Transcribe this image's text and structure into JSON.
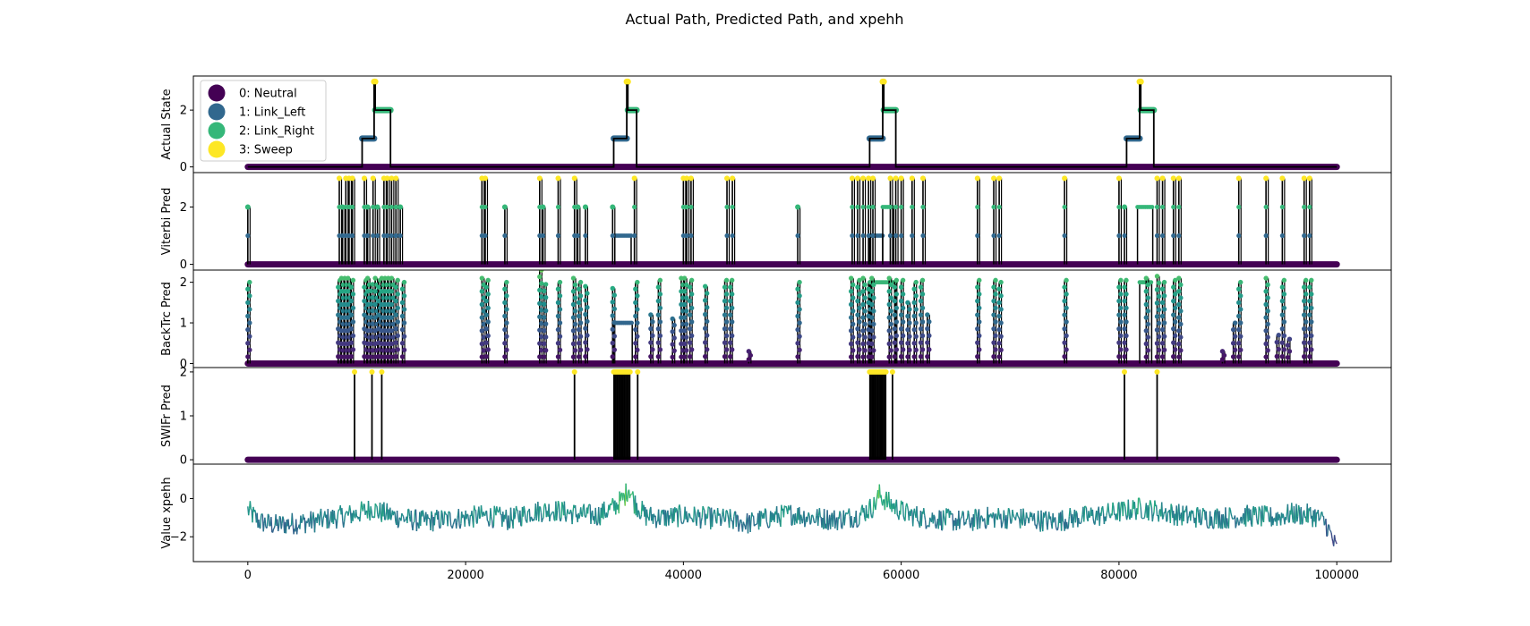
{
  "figure": {
    "title": "Actual Path, Predicted Path, and xpehh"
  },
  "colors": {
    "state_0": "#440154",
    "state_1": "#31688e",
    "state_2": "#35b779",
    "state_3": "#fde725",
    "line": "#000000",
    "frame": "#000000"
  },
  "legend": {
    "placement": "upper-left of top panel",
    "items": [
      {
        "label": "0: Neutral",
        "color": "#440154"
      },
      {
        "label": "1: Link_Left",
        "color": "#31688e"
      },
      {
        "label": "2: Link_Right",
        "color": "#35b779"
      },
      {
        "label": "3: Sweep",
        "color": "#fde725"
      }
    ]
  },
  "chart_data": [
    {
      "type": "line",
      "panel": "actual",
      "ylabel": "Actual State",
      "xlim": [
        -5000,
        105000
      ],
      "ylim": [
        -0.2,
        3.2
      ],
      "yticks": [
        0,
        2
      ],
      "ytick_labels": [
        "0",
        "2"
      ],
      "state_path": [
        [
          0,
          0
        ],
        [
          10500,
          0
        ],
        [
          10500,
          1
        ],
        [
          11600,
          1
        ],
        [
          11600,
          3
        ],
        [
          11700,
          3
        ],
        [
          11700,
          2
        ],
        [
          13100,
          2
        ],
        [
          13100,
          0
        ],
        [
          33600,
          0
        ],
        [
          33600,
          1
        ],
        [
          34800,
          1
        ],
        [
          34800,
          3
        ],
        [
          34900,
          3
        ],
        [
          34900,
          2
        ],
        [
          35700,
          2
        ],
        [
          35700,
          0
        ],
        [
          57100,
          0
        ],
        [
          57100,
          1
        ],
        [
          58300,
          1
        ],
        [
          58300,
          3
        ],
        [
          58400,
          3
        ],
        [
          58400,
          2
        ],
        [
          59500,
          2
        ],
        [
          59500,
          0
        ],
        [
          80700,
          0
        ],
        [
          80700,
          1
        ],
        [
          81900,
          1
        ],
        [
          81900,
          3
        ],
        [
          82000,
          3
        ],
        [
          82000,
          2
        ],
        [
          83200,
          2
        ],
        [
          83200,
          0
        ],
        [
          100000,
          0
        ]
      ]
    },
    {
      "type": "line",
      "panel": "viterbi",
      "ylabel": "Viterbi Pred",
      "xlim": [
        -5000,
        105000
      ],
      "ylim": [
        -0.2,
        3.2
      ],
      "yticks": [
        0,
        2
      ],
      "ytick_labels": [
        "0",
        "2"
      ],
      "spikes": [
        [
          0,
          2
        ],
        [
          8400,
          3
        ],
        [
          8700,
          2
        ],
        [
          9000,
          3
        ],
        [
          9300,
          3
        ],
        [
          9600,
          3
        ],
        [
          10700,
          3
        ],
        [
          11000,
          2
        ],
        [
          11500,
          3
        ],
        [
          11900,
          2
        ],
        [
          12500,
          3
        ],
        [
          12800,
          3
        ],
        [
          13200,
          3
        ],
        [
          13600,
          3
        ],
        [
          14000,
          2
        ],
        [
          21500,
          3
        ],
        [
          21800,
          3
        ],
        [
          23600,
          2
        ],
        [
          26800,
          3
        ],
        [
          27100,
          2
        ],
        [
          28500,
          3
        ],
        [
          30000,
          3
        ],
        [
          30300,
          2
        ],
        [
          31000,
          2
        ],
        [
          33500,
          2
        ],
        [
          35500,
          3
        ],
        [
          40000,
          3
        ],
        [
          40300,
          3
        ],
        [
          40700,
          3
        ],
        [
          44000,
          3
        ],
        [
          44500,
          3
        ],
        [
          50500,
          2
        ],
        [
          55500,
          3
        ],
        [
          56000,
          3
        ],
        [
          56500,
          3
        ],
        [
          57000,
          3
        ],
        [
          57400,
          3
        ],
        [
          59000,
          3
        ],
        [
          59500,
          3
        ],
        [
          60000,
          3
        ],
        [
          61000,
          3
        ],
        [
          62000,
          3
        ],
        [
          67000,
          3
        ],
        [
          68500,
          3
        ],
        [
          69000,
          3
        ],
        [
          75000,
          3
        ],
        [
          80000,
          3
        ],
        [
          80500,
          2
        ],
        [
          83500,
          3
        ],
        [
          84000,
          3
        ],
        [
          85000,
          3
        ],
        [
          85500,
          3
        ],
        [
          91000,
          3
        ],
        [
          93500,
          3
        ],
        [
          95000,
          3
        ],
        [
          97000,
          3
        ],
        [
          97500,
          3
        ]
      ],
      "blocks": [
        {
          "x": [
            33700,
            35200
          ],
          "y": 1
        },
        {
          "x": [
            57100,
            58300
          ],
          "y": 1
        },
        {
          "x": [
            58300,
            59300
          ],
          "y": 2
        },
        {
          "x": [
            81700,
            83100
          ],
          "y": 2
        }
      ]
    },
    {
      "type": "line",
      "panel": "backtrace",
      "ylabel": "BackTrc Pred",
      "xlim": [
        -5000,
        105000
      ],
      "ylim": [
        -0.1,
        2.3
      ],
      "yticks": [
        0,
        1,
        2
      ],
      "ytick_labels": [
        "0",
        "1",
        "2"
      ],
      "spikes": [
        [
          0,
          2.0
        ],
        [
          8300,
          2.05
        ],
        [
          8600,
          2.1
        ],
        [
          8900,
          2.1
        ],
        [
          9200,
          2.1
        ],
        [
          9500,
          2.05
        ],
        [
          10700,
          2.05
        ],
        [
          11000,
          2.1
        ],
        [
          11300,
          1.95
        ],
        [
          11700,
          2.1
        ],
        [
          12000,
          2.05
        ],
        [
          12300,
          2.1
        ],
        [
          12600,
          2.1
        ],
        [
          12900,
          2.1
        ],
        [
          13200,
          2.1
        ],
        [
          13600,
          2.05
        ],
        [
          14200,
          2.0
        ],
        [
          21500,
          2.1
        ],
        [
          21900,
          2.05
        ],
        [
          23600,
          2.0
        ],
        [
          26800,
          2.3
        ],
        [
          27200,
          1.95
        ],
        [
          28500,
          2.0
        ],
        [
          29900,
          2.1
        ],
        [
          30400,
          2.0
        ],
        [
          31000,
          1.9
        ],
        [
          33500,
          1.85
        ],
        [
          35600,
          2.0
        ],
        [
          37000,
          1.2
        ],
        [
          37700,
          2.05
        ],
        [
          39000,
          1.1
        ],
        [
          39800,
          2.1
        ],
        [
          40100,
          2.1
        ],
        [
          40600,
          2.05
        ],
        [
          42000,
          1.9
        ],
        [
          43800,
          2.05
        ],
        [
          44300,
          2.05
        ],
        [
          46000,
          0.3
        ],
        [
          50500,
          2.0
        ],
        [
          55400,
          2.1
        ],
        [
          56000,
          2.05
        ],
        [
          56500,
          2.1
        ],
        [
          57000,
          2.0
        ],
        [
          57300,
          2.1
        ],
        [
          58900,
          2.1
        ],
        [
          59400,
          2.05
        ],
        [
          60000,
          2.05
        ],
        [
          60600,
          1.5
        ],
        [
          61200,
          2.0
        ],
        [
          61800,
          2.05
        ],
        [
          62400,
          1.2
        ],
        [
          67000,
          2.05
        ],
        [
          68500,
          2.05
        ],
        [
          69000,
          2.0
        ],
        [
          75000,
          2.05
        ],
        [
          80000,
          2.05
        ],
        [
          80500,
          2.05
        ],
        [
          82500,
          2.1
        ],
        [
          83500,
          2.15
        ],
        [
          84000,
          2.0
        ],
        [
          85000,
          2.05
        ],
        [
          85500,
          2.1
        ],
        [
          89500,
          0.3
        ],
        [
          90500,
          1.0
        ],
        [
          91000,
          2.0
        ],
        [
          93500,
          2.1
        ],
        [
          94500,
          0.7
        ],
        [
          95000,
          2.05
        ],
        [
          95500,
          0.6
        ],
        [
          97000,
          2.05
        ],
        [
          97500,
          2.05
        ]
      ],
      "blocks": [
        {
          "x": [
            33600,
            35300
          ],
          "y": 1
        },
        {
          "x": [
            57100,
            59500
          ],
          "y": 2
        },
        {
          "x": [
            81900,
            83000
          ],
          "y": 2
        }
      ]
    },
    {
      "type": "line",
      "panel": "swifr",
      "ylabel": "SWIFr Pred",
      "xlim": [
        -5000,
        105000
      ],
      "ylim": [
        -0.1,
        2.1
      ],
      "yticks": [
        0,
        1,
        2
      ],
      "ytick_labels": [
        "0",
        "1",
        "2"
      ],
      "spikes": [
        [
          9800,
          2
        ],
        [
          11400,
          2
        ],
        [
          12300,
          2
        ],
        [
          30000,
          2
        ],
        [
          80500,
          2
        ],
        [
          83500,
          2
        ]
      ],
      "dense_regions": [
        {
          "x": [
            33600,
            35100
          ],
          "y": 2
        },
        {
          "x": [
            57100,
            58600
          ],
          "y": 2
        }
      ],
      "extra_spikes": [
        [
          35800,
          2
        ],
        [
          59200,
          2
        ]
      ]
    },
    {
      "type": "line",
      "panel": "xpehh",
      "ylabel": "Value xpehh",
      "xlabel": "",
      "xlim": [
        -5000,
        105000
      ],
      "ylim": [
        -3.3,
        1.8
      ],
      "yticks": [
        -2,
        0
      ],
      "ytick_labels": [
        "−2",
        "0"
      ],
      "xticks": [
        0,
        20000,
        40000,
        60000,
        80000,
        100000
      ],
      "xtick_labels": [
        "0",
        "20000",
        "40000",
        "60000",
        "80000",
        "100000"
      ],
      "series_profile": {
        "x": [
          0,
          1000,
          2500,
          4000,
          6000,
          8000,
          10000,
          11500,
          12000,
          14000,
          16000,
          18000,
          20000,
          22000,
          24000,
          26000,
          28000,
          30000,
          32000,
          33500,
          34500,
          35000,
          35500,
          36500,
          38000,
          40000,
          42000,
          44000,
          46000,
          48000,
          50000,
          52000,
          54000,
          56000,
          57500,
          58000,
          59000,
          60500,
          62000,
          64000,
          66000,
          68000,
          70000,
          72000,
          74000,
          76000,
          78000,
          80000,
          82000,
          84000,
          86000,
          88000,
          90000,
          92000,
          94000,
          96000,
          98000,
          99000,
          100000
        ],
        "y": [
          -0.6,
          -1.2,
          -1.4,
          -1.3,
          -1.2,
          -1.0,
          -0.8,
          -0.5,
          -0.7,
          -1.0,
          -1.2,
          -1.1,
          -1.0,
          -0.9,
          -1.1,
          -0.7,
          -0.6,
          -0.8,
          -0.9,
          -0.5,
          0.0,
          0.6,
          -0.2,
          -0.9,
          -1.0,
          -0.9,
          -1.0,
          -1.1,
          -1.3,
          -1.0,
          -0.8,
          -1.0,
          -1.1,
          -0.9,
          -0.4,
          0.2,
          -0.3,
          -0.8,
          -1.0,
          -1.1,
          -1.2,
          -1.0,
          -1.0,
          -1.1,
          -1.2,
          -1.0,
          -0.9,
          -0.7,
          -0.5,
          -0.7,
          -0.9,
          -1.0,
          -1.0,
          -0.9,
          -1.0,
          -0.8,
          -0.9,
          -1.3,
          -2.7
        ],
        "noise_amplitude": 0.6
      }
    }
  ]
}
